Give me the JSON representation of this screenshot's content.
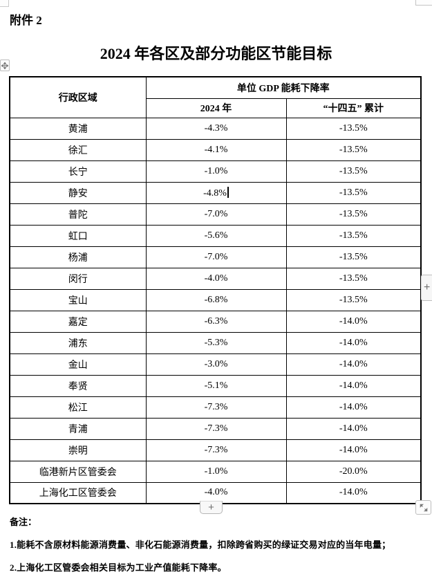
{
  "page": {
    "attachment_label": "附件 2",
    "title": "2024 年各区及部分功能区节能目标"
  },
  "table": {
    "header": {
      "region": "行政区域",
      "group": "单位 GDP 能耗下降率",
      "col_2024": "2024 年",
      "col_cumulative": "“十四五” 累计"
    },
    "rows": [
      {
        "region": "黄浦",
        "y2024": "-4.3%",
        "cumulative": "-13.5%"
      },
      {
        "region": "徐汇",
        "y2024": "-4.1%",
        "cumulative": "-13.5%"
      },
      {
        "region": "长宁",
        "y2024": "-1.0%",
        "cumulative": "-13.5%"
      },
      {
        "region": "静安",
        "y2024": "-4.8%",
        "cumulative": "-13.5%"
      },
      {
        "region": "普陀",
        "y2024": "-7.0%",
        "cumulative": "-13.5%"
      },
      {
        "region": "虹口",
        "y2024": "-5.6%",
        "cumulative": "-13.5%"
      },
      {
        "region": "杨浦",
        "y2024": "-7.0%",
        "cumulative": "-13.5%"
      },
      {
        "region": "闵行",
        "y2024": "-4.0%",
        "cumulative": "-13.5%"
      },
      {
        "region": "宝山",
        "y2024": "-6.8%",
        "cumulative": "-13.5%"
      },
      {
        "region": "嘉定",
        "y2024": "-6.3%",
        "cumulative": "-14.0%"
      },
      {
        "region": "浦东",
        "y2024": "-5.3%",
        "cumulative": "-14.0%"
      },
      {
        "region": "金山",
        "y2024": "-3.0%",
        "cumulative": "-14.0%"
      },
      {
        "region": "奉贤",
        "y2024": "-5.1%",
        "cumulative": "-14.0%"
      },
      {
        "region": "松江",
        "y2024": "-7.3%",
        "cumulative": "-14.0%"
      },
      {
        "region": "青浦",
        "y2024": "-7.3%",
        "cumulative": "-14.0%"
      },
      {
        "region": "崇明",
        "y2024": "-7.3%",
        "cumulative": "-14.0%"
      },
      {
        "region": "临港新片区管委会",
        "y2024": "-1.0%",
        "cumulative": "-20.0%"
      },
      {
        "region": "上海化工区管委会",
        "y2024": "-4.0%",
        "cumulative": "-14.0%"
      }
    ]
  },
  "editor_state": {
    "caret": {
      "row_index": 3,
      "column": "y2024"
    }
  },
  "controls": {
    "add_row_label": "+",
    "add_col_label": "+",
    "move_icon": "move-arrows",
    "resize_icon": "diagonal-resize-arrows"
  },
  "notes": {
    "label": "备注：",
    "items": [
      "1.能耗不含原材料能源消费量、非化石能源消费量，扣除跨省购买的绿证交易对应的当年电量；",
      "2.上海化工区管委会相关目标为工业产值能耗下降率。"
    ]
  },
  "colors": {
    "table_border": "#000000",
    "control_border": "#bdbdbd",
    "control_background": "#f7f7f7",
    "control_glyph": "#6e6e6e",
    "text": "#000000",
    "page_background": "#ffffff"
  }
}
